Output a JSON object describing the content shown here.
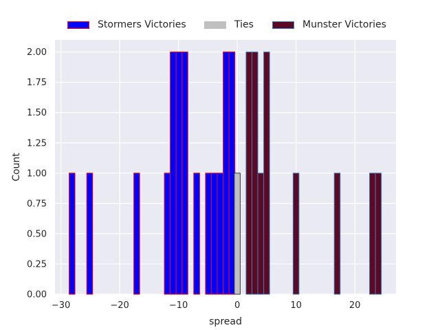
{
  "chart_data": {
    "type": "bar",
    "xlabel": "spread",
    "ylabel": "Count",
    "xlim": [
      -31,
      27
    ],
    "ylim": [
      0,
      2.1
    ],
    "grid": true,
    "legend_position": "top-center",
    "x_ticks": [
      -30,
      -20,
      -10,
      0,
      10,
      20
    ],
    "x_tick_labels": [
      "−30",
      "−20",
      "−10",
      "0",
      "10",
      "20"
    ],
    "y_ticks": [
      0,
      0.25,
      0.5,
      0.75,
      1.0,
      1.25,
      1.5,
      1.75,
      2.0
    ],
    "y_tick_labels": [
      "0.00",
      "0.25",
      "0.50",
      "0.75",
      "1.00",
      "1.25",
      "1.50",
      "1.75",
      "2.00"
    ],
    "series": [
      {
        "name": "Stormers Victories",
        "fill": "#0000ff",
        "edge": "#ff0000",
        "bins": [
          {
            "x0": -28.6,
            "x1": -27.6,
            "count": 1
          },
          {
            "x0": -25.6,
            "x1": -24.6,
            "count": 1
          },
          {
            "x0": -17.6,
            "x1": -16.6,
            "count": 1
          },
          {
            "x0": -12.4,
            "x1": -11.4,
            "count": 1
          },
          {
            "x0": -11.4,
            "x1": -10.4,
            "count": 2
          },
          {
            "x0": -10.4,
            "x1": -9.4,
            "count": 2
          },
          {
            "x0": -9.4,
            "x1": -8.4,
            "count": 2
          },
          {
            "x0": -7.4,
            "x1": -6.4,
            "count": 1
          },
          {
            "x0": -5.4,
            "x1": -4.4,
            "count": 1
          },
          {
            "x0": -4.4,
            "x1": -3.4,
            "count": 1
          },
          {
            "x0": -3.4,
            "x1": -2.4,
            "count": 1
          },
          {
            "x0": -2.4,
            "x1": -1.4,
            "count": 2
          },
          {
            "x0": -1.4,
            "x1": -0.4,
            "count": 2
          }
        ]
      },
      {
        "name": "Ties",
        "fill": "#c0c0c0",
        "edge": "#333333",
        "bins": [
          {
            "x0": -0.5,
            "x1": 0.5,
            "count": 1
          }
        ]
      },
      {
        "name": "Munster Victories",
        "fill": "#5c0a24",
        "edge": "#3a7cc0",
        "bins": [
          {
            "x0": 1.5,
            "x1": 2.5,
            "count": 2
          },
          {
            "x0": 2.5,
            "x1": 3.5,
            "count": 2
          },
          {
            "x0": 3.5,
            "x1": 4.5,
            "count": 1
          },
          {
            "x0": 4.5,
            "x1": 5.5,
            "count": 2
          },
          {
            "x0": 9.5,
            "x1": 10.5,
            "count": 1
          },
          {
            "x0": 16.5,
            "x1": 17.5,
            "count": 1
          },
          {
            "x0": 22.5,
            "x1": 23.5,
            "count": 1
          },
          {
            "x0": 23.5,
            "x1": 24.5,
            "count": 1
          }
        ]
      }
    ],
    "colors": {
      "axes_background": "#eaeaf2",
      "grid": "#ffffff",
      "text": "#262626"
    }
  }
}
